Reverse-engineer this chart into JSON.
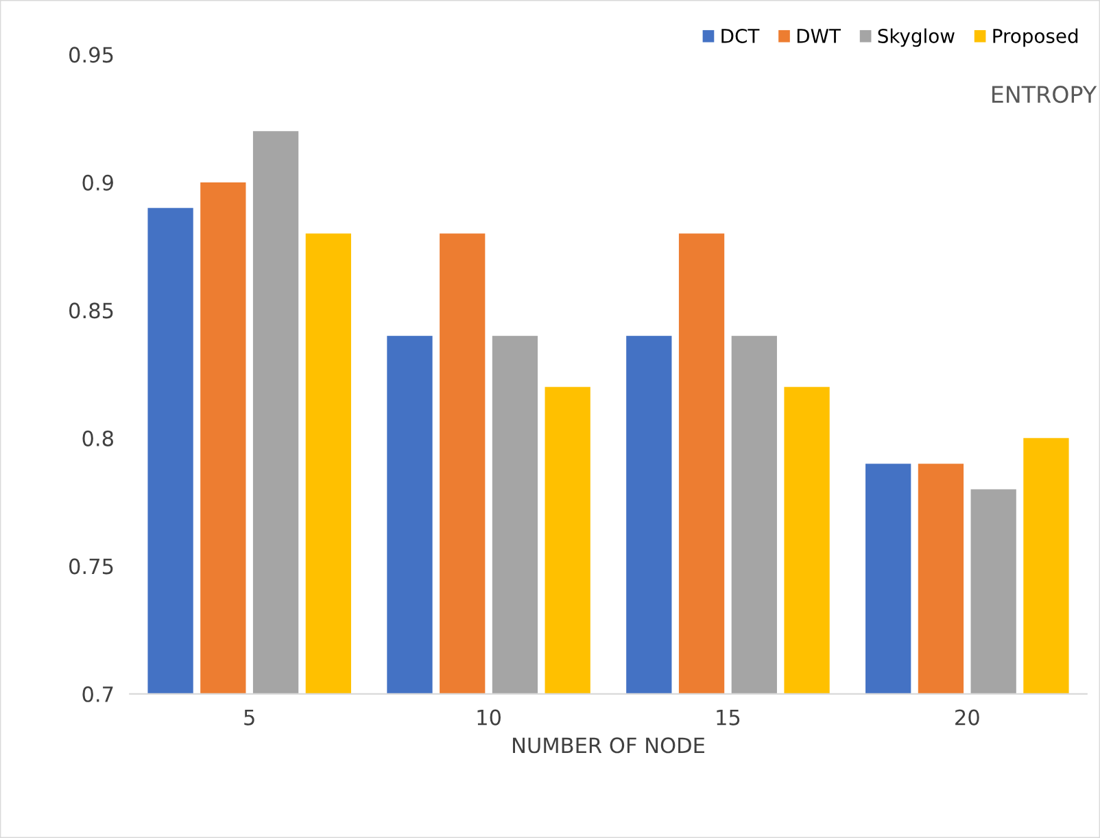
{
  "chart_data": {
    "type": "bar",
    "xlabel": "NUMBER OF NODE",
    "annotations": [
      "ENTROPY"
    ],
    "categories": [
      "5",
      "10",
      "15",
      "20"
    ],
    "series": [
      {
        "name": "DCT",
        "color": "#4472c4",
        "values": [
          0.89,
          0.84,
          0.84,
          0.79
        ]
      },
      {
        "name": "DWT",
        "color": "#ed7d31",
        "values": [
          0.9,
          0.88,
          0.88,
          0.79
        ]
      },
      {
        "name": "Skyglow",
        "color": "#a5a5a5",
        "values": [
          0.92,
          0.84,
          0.84,
          0.78
        ]
      },
      {
        "name": "Proposed",
        "color": "#ffc000",
        "values": [
          0.88,
          0.82,
          0.82,
          0.8
        ]
      }
    ],
    "ylim": [
      0.7,
      0.95
    ],
    "yticks": [
      0.7,
      0.75,
      0.8,
      0.85,
      0.9,
      0.95
    ],
    "grid": false,
    "legend": "top right"
  }
}
